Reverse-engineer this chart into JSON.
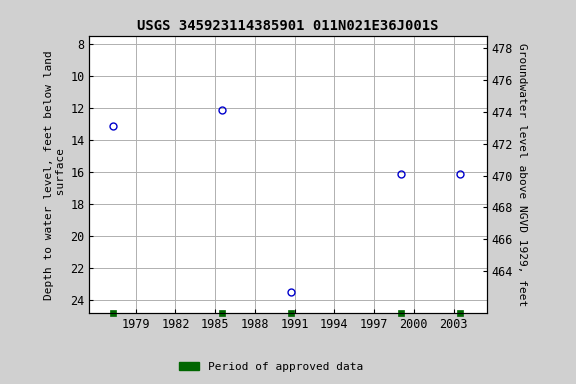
{
  "title": "USGS 345923114385901 011N021E36J001S",
  "data_points": [
    {
      "year": 1977.3,
      "depth": 13.1
    },
    {
      "year": 1985.5,
      "depth": 12.1
    },
    {
      "year": 1990.7,
      "depth": 23.5
    },
    {
      "year": 1999.0,
      "depth": 16.1
    },
    {
      "year": 2003.5,
      "depth": 16.1
    }
  ],
  "approved_x": [
    1977.3,
    1985.5,
    1990.7,
    1999.0,
    2003.5
  ],
  "xlim": [
    1975.5,
    2005.5
  ],
  "xticks": [
    1979,
    1982,
    1985,
    1988,
    1991,
    1994,
    1997,
    2000,
    2003
  ],
  "ylim_depth": [
    24.8,
    7.5
  ],
  "yticks_depth": [
    8,
    10,
    12,
    14,
    16,
    18,
    20,
    22,
    24
  ],
  "land_surface_elev": 486.2,
  "yticks_elev": [
    464,
    466,
    468,
    470,
    472,
    474,
    476,
    478
  ],
  "ylabel_left": "Depth to water level, feet below land\n surface",
  "ylabel_right": "Groundwater level above NGVD 1929, feet",
  "bg_color": "#d0d0d0",
  "plot_bg_color": "#ffffff",
  "grid_color": "#b0b0b0",
  "point_color": "#0000cc",
  "approved_color": "#006600",
  "title_fontsize": 10,
  "label_fontsize": 8,
  "tick_fontsize": 8.5
}
